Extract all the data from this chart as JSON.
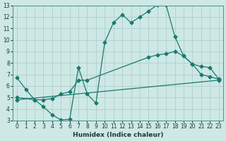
{
  "xlabel": "Humidex (Indice chaleur)",
  "bg_color": "#cde8e5",
  "grid_color": "#aecfcc",
  "line_color": "#1a7a6e",
  "xlim": [
    -0.5,
    23.5
  ],
  "ylim": [
    3,
    13
  ],
  "xticks": [
    0,
    1,
    2,
    3,
    4,
    5,
    6,
    7,
    8,
    9,
    10,
    11,
    12,
    13,
    14,
    15,
    16,
    17,
    18,
    19,
    20,
    21,
    22,
    23
  ],
  "yticks": [
    3,
    4,
    5,
    6,
    7,
    8,
    9,
    10,
    11,
    12,
    13
  ],
  "line1_x": [
    0,
    1,
    2,
    3,
    4,
    5,
    6,
    7,
    8,
    9,
    10,
    11,
    12,
    13,
    14,
    15,
    16,
    17,
    18,
    19,
    20,
    21,
    22,
    23
  ],
  "line1_y": [
    6.7,
    5.7,
    4.8,
    4.2,
    3.5,
    3.05,
    3.1,
    7.6,
    5.3,
    4.5,
    9.8,
    11.5,
    12.2,
    11.5,
    12.0,
    12.5,
    13.05,
    13.05,
    10.3,
    8.6,
    7.9,
    7.0,
    6.8,
    6.6
  ],
  "line2_x": [
    0,
    2,
    3,
    4,
    5,
    6,
    7,
    8,
    15,
    16,
    17,
    18,
    19,
    20,
    21,
    22,
    23
  ],
  "line2_y": [
    5.0,
    4.8,
    4.8,
    4.9,
    5.3,
    5.5,
    6.5,
    6.5,
    8.5,
    8.7,
    8.8,
    9.0,
    8.6,
    7.9,
    7.7,
    7.6,
    6.6
  ],
  "line3_x": [
    0,
    23
  ],
  "line3_y": [
    4.8,
    6.5
  ]
}
